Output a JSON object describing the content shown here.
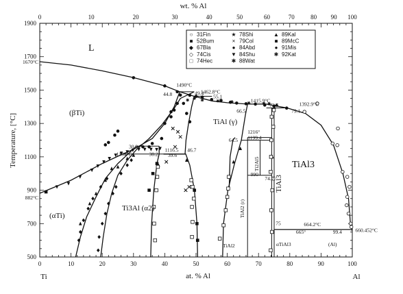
{
  "chart_data": {
    "type": "scatter",
    "title": "",
    "xlabel": "at. % Al",
    "x2label": "wt. % Al",
    "ylabel": "Temperature, [°C]",
    "xlim": [
      0,
      100
    ],
    "ylim": [
      500,
      1900
    ],
    "x_ticks": [
      "0",
      "10",
      "20",
      "30",
      "40",
      "50",
      "60",
      "70",
      "80",
      "90",
      "100"
    ],
    "x2_ticks": [
      "0",
      "10",
      "20",
      "30",
      "40",
      "50",
      "60",
      "70",
      "80",
      "90",
      "100"
    ],
    "y_ticks": [
      "500",
      "700",
      "900",
      "1100",
      "1300",
      "1500",
      "1700",
      "1900"
    ],
    "end_labels": {
      "left": "Ti",
      "right": "Al"
    },
    "special_temps": {
      "ti_melt": "1670°C",
      "ti_transition": "882°C"
    },
    "phase_labels": {
      "liquid": "L",
      "beta_ti": "(βTi)",
      "alpha_ti": "(αTi)",
      "ti3al": "Ti3Al (α2)",
      "tial": "TiAl (γ)",
      "tial3": "TiAl3",
      "tial3_vertical": "TiAl3",
      "ti2al5": "Ti2Al5",
      "tial2": "TiAl2 (r)",
      "tial2_arrow": "TiAl2",
      "alpha_tial3": "αTiAl3",
      "al": "(Al)"
    },
    "annotations": [
      "1490°C",
      "44.8",
      "49.4",
      "1462.8°C",
      "55.1",
      "1415.9°C",
      "72.5",
      "1392.9°C",
      "79.1",
      "66.5",
      "1216°",
      "1199.4",
      "64.5",
      "30.9",
      "38.2",
      "1116.5",
      "46.7",
      "1164°C",
      "39.6",
      "990",
      "74.2",
      "75",
      "664.2°C",
      "665°",
      "99.4",
      "660.452°C"
    ],
    "legend": [
      {
        "symbol": "○",
        "label": "31Fin"
      },
      {
        "symbol": "■",
        "label": "52Bum"
      },
      {
        "symbol": "◆",
        "label": "67Bla"
      },
      {
        "symbol": "◇",
        "label": "74Cis"
      },
      {
        "symbol": "□",
        "label": "74Hec"
      },
      {
        "symbol": "★",
        "label": "78Shi"
      },
      {
        "symbol": "×",
        "label": "79Col"
      },
      {
        "symbol": "●",
        "label": "84Abd"
      },
      {
        "symbol": "▼",
        "label": "84Shu"
      },
      {
        "symbol": "✱",
        "label": "88Wat"
      },
      {
        "symbol": "▲",
        "label": "89Kal"
      },
      {
        "symbol": "■",
        "label": "89McC"
      },
      {
        "symbol": "●",
        "label": "91Mis"
      },
      {
        "symbol": "✱",
        "label": "92Kat"
      }
    ],
    "boundaries": {
      "liquidus_ti": [
        [
          0,
          1670
        ],
        [
          10,
          1650
        ],
        [
          20,
          1615
        ],
        [
          30,
          1575
        ],
        [
          40,
          1525
        ],
        [
          44.8,
          1490
        ],
        [
          49.4,
          1462.8
        ],
        [
          55.1,
          1435
        ],
        [
          60,
          1424
        ],
        [
          66.5,
          1416
        ],
        [
          72.5,
          1415.9
        ],
        [
          77,
          1400
        ],
        [
          79.1,
          1392.9
        ]
      ],
      "liquidus_al": [
        [
          79.1,
          1392.9
        ],
        [
          85,
          1360
        ],
        [
          90,
          1290
        ],
        [
          94,
          1170
        ],
        [
          97,
          1000
        ],
        [
          98.8,
          850
        ],
        [
          99.4,
          700
        ],
        [
          100,
          660.452
        ]
      ],
      "beta_boundary": [
        [
          0,
          882
        ],
        [
          10,
          960
        ],
        [
          20,
          1060
        ],
        [
          26,
          1112
        ],
        [
          30,
          1145
        ],
        [
          36,
          1210
        ],
        [
          40,
          1300
        ],
        [
          43,
          1400
        ],
        [
          44.8,
          1490
        ]
      ],
      "alpha_beta_lower": [
        [
          11.5,
          500
        ],
        [
          13,
          620
        ],
        [
          15,
          740
        ],
        [
          18,
          860
        ],
        [
          21,
          970
        ],
        [
          25,
          1060
        ],
        [
          30.9,
          1164
        ]
      ],
      "alpha_beta_upper": [
        [
          19.5,
          500
        ],
        [
          20.3,
          620
        ],
        [
          21.5,
          760
        ],
        [
          23,
          880
        ],
        [
          25,
          990
        ],
        [
          28,
          1080
        ],
        [
          31,
          1145
        ],
        [
          35,
          1210
        ],
        [
          39,
          1290
        ],
        [
          43,
          1390
        ],
        [
          45,
          1450
        ],
        [
          49.4,
          1490
        ]
      ],
      "ti3al_left": [
        [
          35.5,
          500
        ],
        [
          35.8,
          700
        ],
        [
          36.5,
          900
        ],
        [
          37.5,
          1060
        ],
        [
          38.2,
          1116.5
        ],
        [
          38.2,
          1164
        ]
      ],
      "ti3al_right": [
        [
          50.5,
          500
        ],
        [
          50.3,
          700
        ],
        [
          49.5,
          900
        ],
        [
          48,
          1050
        ],
        [
          46.7,
          1116.5
        ],
        [
          39.6,
          1116.5
        ]
      ],
      "tial_left": [
        [
          46.5,
          1116.5
        ],
        [
          46.8,
          1200
        ],
        [
          47.6,
          1300
        ],
        [
          48.6,
          1400
        ],
        [
          49.4,
          1462.8
        ]
      ],
      "gamma_right": [
        [
          58.5,
          500
        ],
        [
          58.8,
          700
        ],
        [
          60.2,
          900
        ],
        [
          62.2,
          1050
        ],
        [
          64.5,
          1199.4
        ],
        [
          65.8,
          1350
        ],
        [
          66.5,
          1415.9
        ]
      ],
      "tial3_right": [
        [
          100,
          660.452
        ],
        [
          99.4,
          664.2
        ]
      ],
      "tial2_left": [
        [
          60.6,
          900
        ],
        [
          60.9,
          1100
        ],
        [
          61.8,
          1200
        ],
        [
          62.5,
          1216
        ]
      ],
      "isotherms": [
        [
          [
            30.9,
            1164
          ],
          [
            38.2,
            1164
          ]
        ],
        [
          [
            26,
            1116.5
          ],
          [
            46.7,
            1116.5
          ]
        ],
        [
          [
            44.8,
            1490
          ],
          [
            49.4,
            1490
          ]
        ],
        [
          [
            49.4,
            1462.8
          ],
          [
            55.1,
            1462.8
          ]
        ],
        [
          [
            66.5,
            1415.9
          ],
          [
            72.5,
            1415.9
          ]
        ],
        [
          [
            72.5,
            1392.9
          ],
          [
            79.1,
            1392.9
          ]
        ],
        [
          [
            64.5,
            1199.4
          ],
          [
            74.2,
            1199.4
          ]
        ],
        [
          [
            66.5,
            1216
          ],
          [
            74.2,
            1216
          ]
        ],
        [
          [
            66.5,
            990
          ],
          [
            74.2,
            990
          ]
        ],
        [
          [
            75,
            664.2
          ],
          [
            99.4,
            664.2
          ]
        ],
        [
          [
            75,
            665
          ],
          [
            99.4,
            665
          ]
        ]
      ],
      "verticals": [
        [
          [
            66.5,
            500
          ],
          [
            66.5,
            1216
          ]
        ],
        [
          [
            70.5,
            990
          ],
          [
            70.5,
            1199.4
          ]
        ],
        [
          [
            74.2,
            500
          ],
          [
            74.2,
            1392.9
          ]
        ],
        [
          [
            75,
            500
          ],
          [
            75,
            1392.9
          ]
        ]
      ]
    },
    "data_points": {
      "solid_circle": [
        [
          30,
          1574
        ],
        [
          40,
          1525
        ],
        [
          44,
          1490
        ],
        [
          45,
          1470
        ],
        [
          48,
          1469
        ],
        [
          50,
          1462
        ],
        [
          52,
          1458
        ],
        [
          55,
          1443
        ],
        [
          58,
          1438
        ],
        [
          61,
          1427
        ],
        [
          63,
          1422
        ],
        [
          66,
          1418
        ],
        [
          69,
          1416
        ],
        [
          72,
          1410
        ],
        [
          75,
          1404
        ],
        [
          79,
          1392
        ],
        [
          25,
          1254
        ],
        [
          24,
          1230
        ],
        [
          22,
          1186
        ],
        [
          21,
          1172
        ],
        [
          33,
          1160
        ],
        [
          35,
          1160
        ],
        [
          36,
          1180
        ],
        [
          39,
          1210
        ],
        [
          40,
          1300
        ],
        [
          42,
          1340
        ],
        [
          43,
          1380
        ],
        [
          44,
          1420
        ],
        [
          42,
          1370
        ],
        [
          46,
          1420
        ],
        [
          47,
          1360
        ],
        [
          48,
          1310
        ]
      ],
      "solid_square": [
        [
          2,
          890
        ],
        [
          35,
          900
        ],
        [
          36.2,
          1000
        ],
        [
          37.5,
          1060
        ],
        [
          49.5,
          900
        ],
        [
          50.3,
          700
        ],
        [
          50.5,
          600
        ]
      ],
      "solid_triangle": [
        [
          13,
          700
        ],
        [
          16,
          820
        ],
        [
          18,
          880
        ],
        [
          21,
          960
        ],
        [
          23,
          1030
        ],
        [
          25,
          1040
        ],
        [
          28,
          1090
        ],
        [
          30,
          1110
        ],
        [
          38,
          1050
        ],
        [
          47,
          1080
        ],
        [
          62,
          1070
        ],
        [
          64.2,
          1150
        ],
        [
          74.4,
          1100
        ]
      ],
      "solid_diamond": [
        [
          12.5,
          600
        ],
        [
          13,
          650
        ],
        [
          14,
          720
        ],
        [
          15.5,
          790
        ],
        [
          17,
          850
        ],
        [
          19.5,
          920
        ],
        [
          21.5,
          970
        ],
        [
          18.7,
          540
        ],
        [
          19,
          620
        ],
        [
          20,
          700
        ],
        [
          21,
          760
        ],
        [
          22,
          820
        ],
        [
          23.4,
          880
        ],
        [
          24.4,
          920
        ],
        [
          26,
          1000
        ],
        [
          28,
          1050
        ],
        [
          29.3,
          1080
        ]
      ],
      "open_circle": [
        [
          99.5,
          700
        ],
        [
          98.8,
          760
        ],
        [
          98.2,
          810
        ],
        [
          98.4,
          860
        ],
        [
          99.1,
          920
        ],
        [
          96.9,
          1010
        ],
        [
          95.2,
          1170
        ],
        [
          93.7,
          1180
        ],
        [
          95.4,
          1270
        ],
        [
          88.8,
          1420
        ],
        [
          84.7,
          1370
        ],
        [
          99.7,
          680
        ],
        [
          98.4,
          980
        ]
      ],
      "open_square": [
        [
          36.9,
          600
        ],
        [
          36.6,
          700
        ],
        [
          36.5,
          800
        ],
        [
          37.3,
          900
        ],
        [
          37.6,
          980
        ],
        [
          37.8,
          1040
        ],
        [
          48.7,
          620
        ],
        [
          48.9,
          710
        ],
        [
          48.7,
          800
        ],
        [
          49.3,
          850
        ],
        [
          48.9,
          920
        ],
        [
          48.5,
          960
        ],
        [
          57.6,
          610
        ],
        [
          58.8,
          690
        ],
        [
          59.5,
          780
        ],
        [
          60,
          860
        ],
        [
          60.3,
          910
        ],
        [
          60.5,
          980
        ],
        [
          73.9,
          540
        ],
        [
          74.3,
          650
        ],
        [
          74.1,
          780
        ],
        [
          74.4,
          900
        ],
        [
          74.7,
          970
        ],
        [
          73.9,
          1010
        ],
        [
          74,
          1100
        ],
        [
          74.1,
          1200
        ],
        [
          74.7,
          1280
        ],
        [
          74.2,
          1340
        ],
        [
          74.9,
          1380
        ]
      ],
      "cross": [
        [
          40.5,
          1070
        ],
        [
          43.3,
          1160
        ],
        [
          46.7,
          900
        ],
        [
          47.8,
          920
        ],
        [
          45,
          1220
        ],
        [
          44.2,
          1250
        ],
        [
          42.6,
          1270
        ]
      ],
      "star": [
        [
          47.3,
          1440
        ],
        [
          49.5,
          1450
        ],
        [
          52,
          1440
        ],
        [
          57,
          1435
        ],
        [
          61.5,
          1430
        ],
        [
          66.9,
          1423
        ],
        [
          71.7,
          1420
        ],
        [
          73.4,
          1418
        ],
        [
          75.8,
          1410
        ]
      ],
      "down_triangle": [
        [
          5.5,
          920
        ],
        [
          9.2,
          940
        ],
        [
          12.9,
          980
        ],
        [
          16.7,
          1020
        ],
        [
          18.6,
          1045
        ],
        [
          20.5,
          1070
        ],
        [
          22.3,
          1090
        ],
        [
          24.3,
          1110
        ],
        [
          26.1,
          1122
        ],
        [
          28,
          1130
        ],
        [
          29.8,
          1140
        ],
        [
          31.7,
          1145
        ],
        [
          33.6,
          1145
        ],
        [
          35.6,
          1145
        ],
        [
          37.4,
          1144
        ],
        [
          38.5,
          1150
        ]
      ]
    }
  }
}
